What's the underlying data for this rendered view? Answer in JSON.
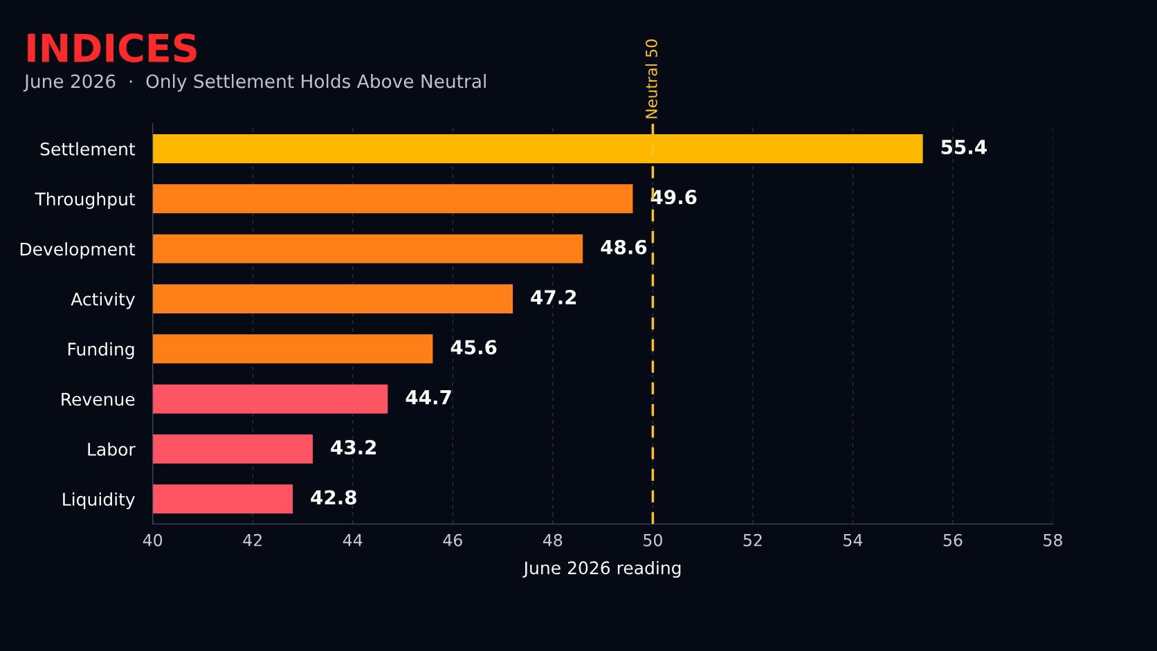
{
  "chart_data": {
    "type": "bar",
    "orientation": "horizontal",
    "title": "INDICES",
    "subtitle": "June 2026  ·  Only Settlement Holds Above Neutral",
    "xlabel": "June 2026 reading",
    "categories": [
      "Settlement",
      "Throughput",
      "Development",
      "Activity",
      "Funding",
      "Revenue",
      "Labor",
      "Liquidity"
    ],
    "values": [
      55.4,
      49.6,
      48.6,
      47.2,
      45.6,
      44.7,
      43.2,
      42.8
    ],
    "colors": [
      "#ffb800",
      "#ff8019",
      "#ff8019",
      "#ff8019",
      "#ff8019",
      "#ff5464",
      "#ff5464",
      "#ff5464"
    ],
    "xlim": [
      40,
      58
    ],
    "xticks": [
      40,
      42,
      44,
      46,
      48,
      50,
      52,
      54,
      56,
      58
    ],
    "grid": "x",
    "data_labels": true,
    "ref_lines": [
      {
        "axis": "x",
        "value": 50,
        "label": "Neutral 50",
        "color": "#ffc21a",
        "line_style": "dashed"
      }
    ]
  }
}
